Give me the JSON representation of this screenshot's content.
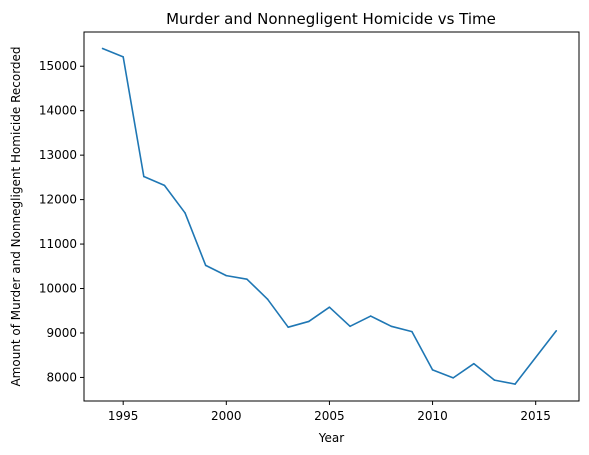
{
  "chart_data": {
    "type": "line",
    "title": "Murder and Nonnegligent Homicide vs Time",
    "xlabel": "Year",
    "ylabel": "Amount of Murder and Nonnegligent Homicide Recorded",
    "xlim": [
      1993.1,
      2017.1
    ],
    "ylim": [
      7470,
      15770
    ],
    "x_ticks": [
      1995,
      2000,
      2005,
      2010,
      2015
    ],
    "y_ticks": [
      8000,
      9000,
      10000,
      11000,
      12000,
      13000,
      14000,
      15000
    ],
    "grid": false,
    "series": [
      {
        "color": "#1f77b4",
        "x": [
          1994,
          1995,
          1996,
          1997,
          1998,
          1999,
          2000,
          2001,
          2002,
          2003,
          2004,
          2005,
          2006,
          2007,
          2008,
          2009,
          2010,
          2011,
          2012,
          2013,
          2014,
          2016
        ],
        "y": [
          15400,
          15210,
          12520,
          12320,
          11700,
          10520,
          10290,
          10210,
          9760,
          9130,
          9260,
          9580,
          9150,
          9380,
          9150,
          9030,
          8170,
          7990,
          8310,
          7940,
          7850,
          9050
        ]
      }
    ]
  }
}
